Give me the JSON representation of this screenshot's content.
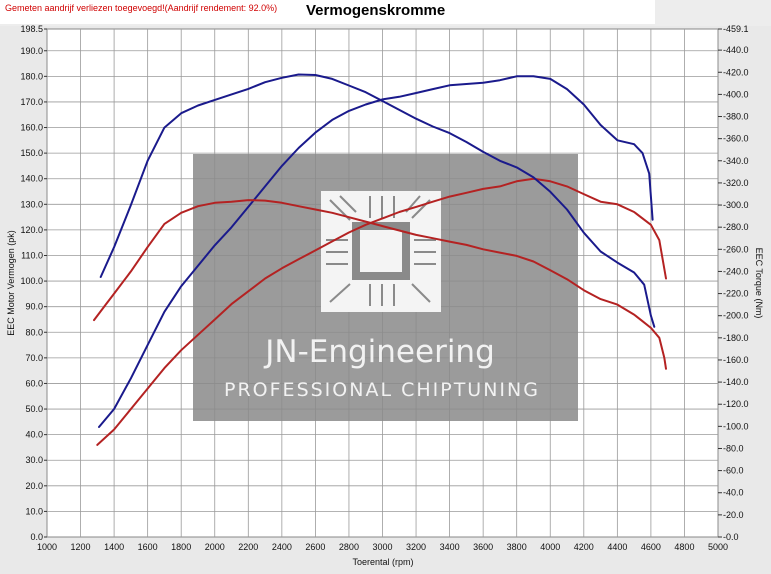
{
  "header": {
    "notice": "Gemeten aandrijf verliezen toegevoegd!(Aandrijf rendement: 92.0%)",
    "title": "Vermogenskromme"
  },
  "watermark": {
    "line1": "JN-Engineering",
    "line2": "PROFESSIONAL CHIPTUNING"
  },
  "colors": {
    "blue": "#1a1a8c",
    "red": "#b42222",
    "grid": "#9a9a9a",
    "watermark_bg": "#8a8a8a"
  },
  "chart_data": {
    "type": "line",
    "title": "Vermogenskromme",
    "xlabel": "Toerental (rpm)",
    "ylabel_left": "EEC Motor Vermogen (pk)",
    "ylabel_right": "EEC Torque (Nm)",
    "xlim": [
      1000,
      5000
    ],
    "ylim_left": [
      0,
      198.5
    ],
    "ylim_right": [
      0,
      459.1
    ],
    "x_ticks": [
      "1000",
      "1200",
      "1400",
      "1600",
      "1800",
      "2000",
      "2200",
      "2400",
      "2600",
      "2800",
      "3000",
      "3200",
      "3400",
      "3600",
      "3800",
      "4000",
      "4200",
      "4400",
      "4600",
      "4800",
      "5000"
    ],
    "y_left_ticks": [
      "0.0",
      "10.0",
      "20.0",
      "30.0",
      "40.0",
      "50.0",
      "60.0",
      "70.0",
      "80.0",
      "90.0",
      "100.0",
      "110.0",
      "120.0",
      "130.0",
      "140.0",
      "150.0",
      "160.0",
      "170.0",
      "180.0",
      "190.0",
      "198.5"
    ],
    "y_left_tick_values": [
      0,
      10,
      20,
      30,
      40,
      50,
      60,
      70,
      80,
      90,
      100,
      110,
      120,
      130,
      140,
      150,
      160,
      170,
      180,
      190,
      198.5
    ],
    "y_right_ticks": [
      "0.0",
      "20.0",
      "40.0",
      "60.0",
      "80.0",
      "100.0",
      "120.0",
      "140.0",
      "160.0",
      "180.0",
      "200.0",
      "220.0",
      "240.0",
      "260.0",
      "280.0",
      "300.0",
      "320.0",
      "340.0",
      "360.0",
      "380.0",
      "400.0",
      "420.0",
      "440.0",
      "459.1"
    ],
    "y_right_tick_values": [
      0,
      20,
      40,
      60,
      80,
      100,
      120,
      140,
      160,
      180,
      200,
      220,
      240,
      260,
      280,
      300,
      320,
      340,
      360,
      380,
      400,
      420,
      440,
      459.1
    ],
    "grid": true,
    "series": [
      {
        "axis": "left",
        "color": "#1a1a8c",
        "points": [
          [
            1310,
            43
          ],
          [
            1400,
            50
          ],
          [
            1500,
            62
          ],
          [
            1600,
            75
          ],
          [
            1700,
            88
          ],
          [
            1800,
            98
          ],
          [
            1900,
            106
          ],
          [
            2000,
            114
          ],
          [
            2100,
            121
          ],
          [
            2200,
            129
          ],
          [
            2300,
            137
          ],
          [
            2400,
            145
          ],
          [
            2500,
            152
          ],
          [
            2600,
            158
          ],
          [
            2700,
            163
          ],
          [
            2800,
            166.5
          ],
          [
            2900,
            169
          ],
          [
            3000,
            171
          ],
          [
            3100,
            172
          ],
          [
            3200,
            173.5
          ],
          [
            3300,
            175
          ],
          [
            3400,
            176.5
          ],
          [
            3500,
            177
          ],
          [
            3600,
            177.5
          ],
          [
            3700,
            178.5
          ],
          [
            3800,
            180
          ],
          [
            3900,
            180
          ],
          [
            4000,
            179
          ],
          [
            4100,
            175
          ],
          [
            4200,
            169
          ],
          [
            4300,
            161
          ],
          [
            4400,
            155
          ],
          [
            4500,
            153.5
          ],
          [
            4550,
            150
          ],
          [
            4590,
            142
          ],
          [
            4610,
            124
          ]
        ]
      },
      {
        "axis": "left",
        "color": "#b42222",
        "points": [
          [
            1300,
            36
          ],
          [
            1400,
            42
          ],
          [
            1500,
            50
          ],
          [
            1600,
            58
          ],
          [
            1700,
            66
          ],
          [
            1800,
            73
          ],
          [
            1900,
            79
          ],
          [
            2000,
            85
          ],
          [
            2100,
            91
          ],
          [
            2200,
            96
          ],
          [
            2300,
            101
          ],
          [
            2400,
            105
          ],
          [
            2500,
            108.5
          ],
          [
            2600,
            112
          ],
          [
            2700,
            115.5
          ],
          [
            2800,
            119
          ],
          [
            2900,
            122
          ],
          [
            3000,
            124.5
          ],
          [
            3100,
            127
          ],
          [
            3200,
            129
          ],
          [
            3300,
            131
          ],
          [
            3400,
            133
          ],
          [
            3500,
            134.5
          ],
          [
            3600,
            136
          ],
          [
            3700,
            137
          ],
          [
            3800,
            139
          ],
          [
            3900,
            140
          ],
          [
            4000,
            139
          ],
          [
            4100,
            137
          ],
          [
            4200,
            134
          ],
          [
            4300,
            131
          ],
          [
            4400,
            130
          ],
          [
            4500,
            127
          ],
          [
            4600,
            122
          ],
          [
            4650,
            116
          ],
          [
            4690,
            101
          ]
        ]
      },
      {
        "axis": "right",
        "color": "#1a1a8c",
        "points": [
          [
            1320,
            235
          ],
          [
            1400,
            262
          ],
          [
            1500,
            300
          ],
          [
            1600,
            340
          ],
          [
            1700,
            370
          ],
          [
            1800,
            383
          ],
          [
            1900,
            390
          ],
          [
            2000,
            395
          ],
          [
            2100,
            400
          ],
          [
            2200,
            405
          ],
          [
            2300,
            411
          ],
          [
            2400,
            415
          ],
          [
            2500,
            418
          ],
          [
            2600,
            417.5
          ],
          [
            2700,
            414
          ],
          [
            2800,
            408
          ],
          [
            2900,
            402
          ],
          [
            3000,
            394
          ],
          [
            3100,
            386
          ],
          [
            3200,
            378
          ],
          [
            3300,
            371
          ],
          [
            3400,
            365
          ],
          [
            3500,
            357
          ],
          [
            3600,
            348
          ],
          [
            3700,
            340
          ],
          [
            3800,
            334
          ],
          [
            3900,
            325
          ],
          [
            4000,
            312
          ],
          [
            4100,
            296
          ],
          [
            4200,
            275
          ],
          [
            4300,
            258
          ],
          [
            4400,
            248
          ],
          [
            4500,
            239
          ],
          [
            4560,
            228
          ],
          [
            4600,
            200
          ],
          [
            4620,
            190
          ]
        ]
      },
      {
        "axis": "right",
        "color": "#b42222",
        "points": [
          [
            1280,
            196
          ],
          [
            1350,
            210
          ],
          [
            1400,
            220
          ],
          [
            1500,
            240
          ],
          [
            1600,
            262
          ],
          [
            1700,
            283
          ],
          [
            1800,
            293
          ],
          [
            1900,
            299
          ],
          [
            2000,
            302
          ],
          [
            2100,
            303
          ],
          [
            2200,
            304.5
          ],
          [
            2300,
            304
          ],
          [
            2400,
            302
          ],
          [
            2500,
            299
          ],
          [
            2600,
            296
          ],
          [
            2700,
            293
          ],
          [
            2800,
            289
          ],
          [
            2900,
            285
          ],
          [
            3000,
            281
          ],
          [
            3100,
            277
          ],
          [
            3200,
            273
          ],
          [
            3300,
            270
          ],
          [
            3400,
            267
          ],
          [
            3500,
            264
          ],
          [
            3600,
            260
          ],
          [
            3700,
            257
          ],
          [
            3800,
            254
          ],
          [
            3900,
            249
          ],
          [
            4000,
            241
          ],
          [
            4100,
            233
          ],
          [
            4200,
            223
          ],
          [
            4300,
            215
          ],
          [
            4400,
            210
          ],
          [
            4500,
            201
          ],
          [
            4550,
            195
          ],
          [
            4600,
            189
          ],
          [
            4650,
            180
          ],
          [
            4680,
            162
          ],
          [
            4690,
            152
          ]
        ]
      }
    ]
  }
}
